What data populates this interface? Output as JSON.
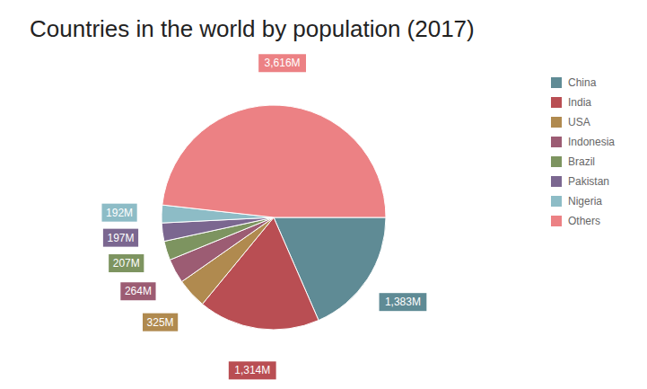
{
  "chart_data": {
    "type": "pie",
    "title": "Countries in the world by population (2017)",
    "categories": [
      "China",
      "India",
      "USA",
      "Indonesia",
      "Brazil",
      "Pakistan",
      "Nigeria",
      "Others"
    ],
    "values": [
      1383,
      1314,
      325,
      264,
      207,
      197,
      192,
      3616
    ],
    "value_labels": [
      "1,383M",
      "1,314M",
      "325M",
      "264M",
      "207M",
      "197M",
      "192M",
      "3,616M"
    ],
    "colors": [
      "#5f8b95",
      "#b94e53",
      "#b08a4f",
      "#9c5c73",
      "#7d9460",
      "#7b6790",
      "#8dbcc6",
      "#ec8184"
    ],
    "data_labels": true,
    "legend": "right"
  }
}
